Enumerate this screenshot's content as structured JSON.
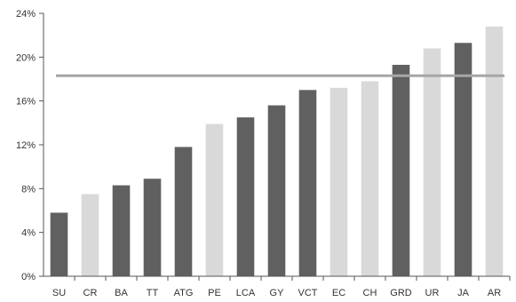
{
  "chart_data": {
    "type": "bar",
    "categories": [
      "SU",
      "CR",
      "BA",
      "TT",
      "ATG",
      "PE",
      "LCA",
      "GY",
      "VCT",
      "EC",
      "CH",
      "GRD",
      "UR",
      "JA",
      "AR"
    ],
    "values": [
      5.8,
      7.5,
      8.3,
      8.9,
      11.8,
      13.9,
      14.5,
      15.6,
      17.0,
      17.2,
      17.8,
      19.3,
      20.8,
      21.3,
      22.8
    ],
    "bar_shade": [
      "dark",
      "light",
      "dark",
      "dark",
      "dark",
      "light",
      "dark",
      "dark",
      "dark",
      "light",
      "light",
      "dark",
      "light",
      "dark",
      "light"
    ],
    "reference_line": 18.3,
    "ylim": [
      0,
      24
    ],
    "yticks": [
      0,
      4,
      8,
      12,
      16,
      20,
      24
    ],
    "ytick_labels": [
      "0%",
      "4%",
      "8%",
      "12%",
      "16%",
      "20%",
      "24%"
    ],
    "title": "",
    "xlabel": "",
    "ylabel": "",
    "grid": false,
    "colors": {
      "dark": "#606060",
      "light": "#d9d9d9",
      "reference_line": "#a6a6a6",
      "axis": "#555555"
    }
  }
}
